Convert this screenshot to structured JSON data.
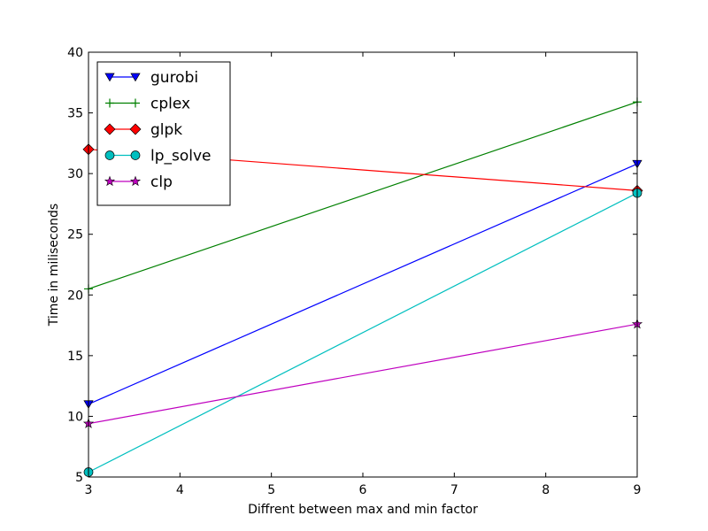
{
  "chart_data": {
    "type": "line",
    "xlabel": "Diffrent between max and min factor",
    "ylabel": "Time in miliseconds",
    "xlim": [
      3,
      9
    ],
    "ylim": [
      5,
      40
    ],
    "xticks": [
      "3",
      "4",
      "5",
      "6",
      "7",
      "8",
      "9"
    ],
    "yticks": [
      "5",
      "10",
      "15",
      "20",
      "25",
      "30",
      "35",
      "40"
    ],
    "grid": false,
    "legend_position": "top-left",
    "series": [
      {
        "name": "gurobi",
        "color": "#0000ff",
        "marker": "triangle-down",
        "x": [
          3,
          9
        ],
        "y": [
          11.0,
          30.8
        ]
      },
      {
        "name": "cplex",
        "color": "#008000",
        "marker": "plus",
        "x": [
          3,
          9
        ],
        "y": [
          20.5,
          35.9
        ]
      },
      {
        "name": "glpk",
        "color": "#ff0000",
        "marker": "diamond",
        "x": [
          3,
          9
        ],
        "y": [
          32.0,
          28.6
        ]
      },
      {
        "name": "lp_solve",
        "color": "#00bfbf",
        "marker": "circle",
        "x": [
          3,
          9
        ],
        "y": [
          5.4,
          28.4
        ]
      },
      {
        "name": "clp",
        "color": "#bf00bf",
        "marker": "star",
        "x": [
          3,
          9
        ],
        "y": [
          9.4,
          17.6
        ]
      }
    ]
  }
}
